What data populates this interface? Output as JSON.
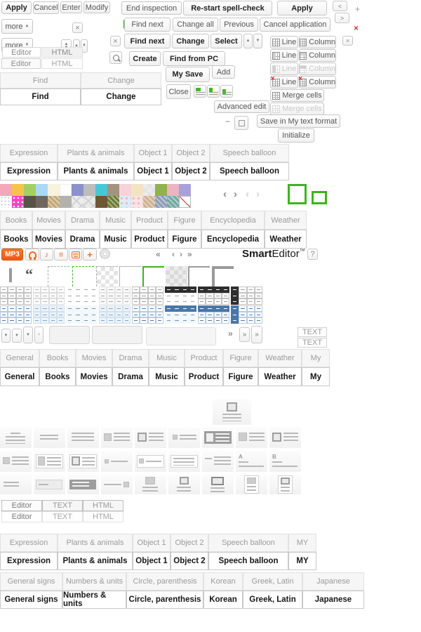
{
  "glyphs": {
    "close": "×",
    "plus": "+",
    "minus": "−",
    "chev_left": "‹",
    "chev_right": "›",
    "chev_dleft": "«",
    "chev_dright": "»",
    "up": "▲",
    "down": "▼",
    "lt": "<",
    "gt": ">",
    "quote": "“",
    "help": "?",
    "a": "A",
    "b": "B"
  },
  "topbar": {
    "apply": "Apply",
    "cancel": "Cancel",
    "enter": "Enter",
    "modify": "Modify",
    "more": "more"
  },
  "mode": {
    "editor": "Editor",
    "html": "HTML",
    "text": "TEXT"
  },
  "find_change": {
    "find": "Find",
    "change": "Change"
  },
  "spell": {
    "end_inspection": "End inspection",
    "restart": "Re-start spell-check",
    "apply": "Apply",
    "find_next": "Find next",
    "change_all": "Change all",
    "previous": "Previous",
    "cancel_application": "Cancel application"
  },
  "replace": {
    "find_next": "Find next",
    "change": "Change",
    "select": "Select"
  },
  "attach": {
    "create": "Create",
    "find_from_pc": "Find from PC",
    "my_save": "My Save",
    "add": "Add",
    "close": "Close",
    "advanced_edit": "Advanced edit"
  },
  "table": {
    "line": "Line",
    "column": "Column",
    "merge": "Merge cells",
    "save_format": "Save in My text format",
    "initialize": "Initialize"
  },
  "media": {
    "mp3": "MP3",
    "note": "♪",
    "list": "≡"
  },
  "logo": {
    "smart": "Smart",
    "editor": "Editor",
    "tm": "™"
  },
  "text_btn": "TEXT",
  "tabs": {
    "sticker": [
      "Expression",
      "Plants & animals",
      "Object 1",
      "Object 2",
      "Speech balloon"
    ],
    "media": [
      "Books",
      "Movies",
      "Drama",
      "Music",
      "Product",
      "Figure",
      "Encyclopedia",
      "Weather"
    ],
    "general": [
      "General",
      "Books",
      "Movies",
      "Drama",
      "Music",
      "Product",
      "Figure",
      "Weather",
      "My"
    ],
    "sticker_my": [
      "Expression",
      "Plants & animals",
      "Object 1",
      "Object 2",
      "Speech balloon",
      "MY"
    ],
    "signs": [
      "General signs",
      "Numbers & units",
      "Circle, parenthesis",
      "Korean",
      "Greek, Latin",
      "Japanese"
    ]
  },
  "palette": {
    "row1": [
      "#f4a7b9",
      "#f6c44a",
      "#a6cf63",
      "#aad9f7",
      "#f7f3dc",
      "#fdfdfd",
      "#8a92c9",
      "#bdbdbd",
      "#45c8d8",
      "#a39480",
      "#f6d3da",
      "#f2e4c3",
      "#ececec",
      "#8fb34a",
      "#eeb3c0",
      "#a9a2d8"
    ],
    "row2": [
      "#ffffff",
      "#ef49c0",
      "#5a5248",
      "#6e675e",
      "#c3a878",
      "#b3b2aa",
      "#ececec",
      "#e9e9e9",
      "#6f5736",
      "#6d7a33",
      "#dcecf7",
      "#f9e3e3",
      "#d2b190",
      "#8c9cb8",
      "#74a8a0",
      "#ffffff"
    ]
  },
  "colors": {
    "green": "#3db41e",
    "orange": "#ee6a1f",
    "blue": "#4a77a8",
    "dark": "#2e2e2e",
    "red": "#cc3333"
  }
}
